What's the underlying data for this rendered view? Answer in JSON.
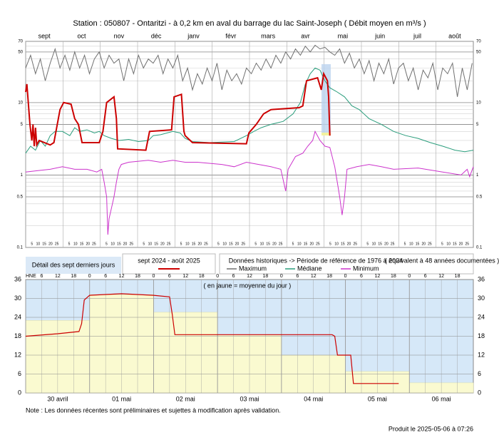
{
  "chart_data": [
    {
      "type": "line",
      "title": "Station : 050807      -   Ontaritzi - à 0,2 km en aval du barrage du lac Saint-Joseph   ( Débit moyen en m³/s )",
      "categories": [
        "sept",
        "oct",
        "nov",
        "déc",
        "janv",
        "févr",
        "mars",
        "avr",
        "mai",
        "juin",
        "juil",
        "août"
      ],
      "day_labels": [
        "5",
        "10",
        "15",
        "20",
        "25"
      ],
      "log_scale": true,
      "xlim": [
        0,
        365
      ],
      "ylim": [
        0.1,
        70
      ],
      "yticks": [
        0.1,
        0.5,
        1,
        5,
        10,
        50,
        70
      ],
      "series": [
        {
          "name": "Maximum",
          "color": "#707070",
          "x": [
            0,
            4,
            8,
            12,
            16,
            20,
            24,
            28,
            32,
            36,
            40,
            44,
            48,
            52,
            56,
            60,
            64,
            68,
            72,
            76,
            80,
            84,
            88,
            92,
            96,
            100,
            104,
            108,
            112,
            116,
            120,
            124,
            128,
            132,
            136,
            140,
            144,
            148,
            152,
            156,
            160,
            164,
            168,
            172,
            176,
            180,
            184,
            188,
            192,
            196,
            200,
            204,
            208,
            212,
            216,
            220,
            224,
            228,
            232,
            236,
            240,
            244,
            248,
            252,
            256,
            260,
            264,
            268,
            272,
            276,
            280,
            284,
            288,
            292,
            296,
            300,
            304,
            308,
            312,
            316,
            320,
            324,
            328,
            332,
            336,
            340,
            344,
            348,
            352,
            356,
            360,
            364
          ],
          "values": [
            30,
            45,
            25,
            40,
            20,
            35,
            55,
            30,
            45,
            28,
            50,
            30,
            45,
            25,
            40,
            50,
            30,
            45,
            35,
            40,
            20,
            40,
            25,
            45,
            30,
            40,
            35,
            45,
            25,
            40,
            30,
            45,
            20,
            30,
            15,
            25,
            18,
            30,
            20,
            35,
            15,
            28,
            20,
            25,
            18,
            30,
            25,
            35,
            28,
            40,
            30,
            45,
            35,
            50,
            40,
            55,
            45,
            60,
            50,
            62,
            55,
            58,
            50,
            45,
            55,
            35,
            48,
            30,
            40,
            25,
            38,
            20,
            35,
            25,
            40,
            18,
            30,
            35,
            20,
            30,
            15,
            28,
            22,
            35,
            15,
            30,
            25,
            35,
            12,
            30,
            15,
            35
          ]
        },
        {
          "name": "Médiane",
          "color": "#2a9d7c",
          "x": [
            0,
            4,
            8,
            12,
            16,
            20,
            24,
            30,
            36,
            40,
            44,
            50,
            56,
            60,
            64,
            70,
            76,
            84,
            92,
            100,
            104,
            110,
            120,
            126,
            130,
            136,
            150,
            170,
            180,
            186,
            192,
            200,
            210,
            218,
            224,
            228,
            232,
            236,
            240,
            244,
            248,
            254,
            260,
            266,
            272,
            280,
            290,
            300,
            310,
            320,
            330,
            340,
            350,
            358,
            365
          ],
          "values": [
            2,
            2.5,
            2.2,
            3,
            2.5,
            3.5,
            4,
            4,
            3.5,
            4.5,
            4,
            4.2,
            3.8,
            4,
            3.5,
            3.2,
            3,
            3.1,
            2.9,
            3,
            3.5,
            3.6,
            4,
            3.8,
            3.2,
            2.9,
            2.8,
            2.9,
            3.5,
            4,
            4.5,
            5,
            5.5,
            7,
            10,
            18,
            25,
            30,
            28,
            20,
            16,
            14,
            12,
            9,
            8,
            6,
            5,
            4,
            3.5,
            3.2,
            2.8,
            2.5,
            2.2,
            2.1,
            2.2
          ]
        },
        {
          "name": "Minimum",
          "color": "#cc33cc",
          "x": [
            0,
            10,
            20,
            30,
            40,
            50,
            58,
            62,
            64,
            66,
            67,
            68,
            70,
            72,
            74,
            76,
            78,
            84,
            100,
            110,
            120,
            130,
            140,
            160,
            170,
            180,
            190,
            200,
            208,
            212,
            214,
            220,
            226,
            230,
            234,
            236,
            240,
            244,
            248,
            252,
            256,
            258,
            260,
            262,
            270,
            280,
            290,
            300,
            320,
            340,
            355,
            360,
            362,
            365
          ],
          "values": [
            1.1,
            1.15,
            1.2,
            1.3,
            1.2,
            1.2,
            1.1,
            1.2,
            0.8,
            0.5,
            0.15,
            0.25,
            0.35,
            0.5,
            0.8,
            1.2,
            1.4,
            1.5,
            1.6,
            1.5,
            1.6,
            1.5,
            1.5,
            1.4,
            1.3,
            1.5,
            1.4,
            1.3,
            1.2,
            0.6,
            1.2,
            1.8,
            2,
            2.5,
            3,
            4,
            3,
            2.5,
            2.4,
            1.3,
            0.5,
            0.28,
            0.5,
            1.2,
            1.3,
            1.4,
            1.3,
            1.2,
            1.25,
            1.1,
            1.0,
            1.2,
            0.95,
            1.3
          ]
        },
        {
          "name": "sept 2024 - août 2025",
          "color": "#cc0000",
          "x": [
            0,
            1,
            3.5,
            5,
            6,
            7,
            8,
            9,
            11,
            20,
            23,
            28,
            31,
            37,
            40,
            43,
            46,
            60,
            63,
            66,
            72,
            74,
            75,
            98,
            101,
            119,
            121,
            127,
            129,
            130,
            136,
            180,
            182,
            188,
            194,
            200,
            223,
            226,
            229,
            238,
            241,
            243,
            246,
            247,
            248
          ],
          "values": [
            14,
            18,
            5,
            3,
            5,
            2.5,
            4.5,
            2.6,
            3,
            2.6,
            2.8,
            8,
            10,
            9.5,
            6,
            5,
            2.8,
            2.8,
            4,
            10,
            12,
            6,
            2.3,
            2.2,
            4,
            4.2,
            12,
            13,
            4,
            3.5,
            2.8,
            2.7,
            3.8,
            5,
            7,
            8,
            8.5,
            9,
            20,
            22,
            15,
            25,
            20,
            12,
            3.5
          ]
        }
      ]
    },
    {
      "type": "line",
      "annotation": "( en jaune = moyenne du jour )",
      "categories": [
        "30 avril",
        "01 mai",
        "02 mai",
        "03 mai",
        "04 mai",
        "05 mai",
        "06 mai"
      ],
      "xlim": [
        0,
        168
      ],
      "ylim": [
        0,
        36
      ],
      "yticks": [
        0,
        6,
        12,
        18,
        24,
        30,
        36
      ],
      "hour_ticks": [
        {
          "value": 0,
          "label": "HNE"
        },
        6,
        12,
        18,
        {
          "value": 24,
          "label": "0"
        },
        {
          "value": 30,
          "label": "6"
        },
        {
          "value": 36,
          "label": "12"
        },
        {
          "value": 42,
          "label": "18"
        },
        {
          "value": 48,
          "label": "0"
        },
        {
          "value": 54,
          "label": "6"
        },
        {
          "value": 60,
          "label": "12"
        },
        {
          "value": 66,
          "label": "18"
        },
        {
          "value": 72,
          "label": "0"
        },
        {
          "value": 78,
          "label": "6"
        },
        {
          "value": 84,
          "label": "12"
        },
        {
          "value": 90,
          "label": "18"
        },
        {
          "value": 96,
          "label": "0"
        },
        {
          "value": 102,
          "label": "6"
        },
        {
          "value": 108,
          "label": "12"
        },
        {
          "value": 114,
          "label": "18"
        },
        {
          "value": 120,
          "label": "0"
        },
        {
          "value": 126,
          "label": "6"
        },
        {
          "value": 132,
          "label": "12"
        },
        {
          "value": 138,
          "label": "18"
        },
        {
          "value": 144,
          "label": "0"
        },
        {
          "value": 150,
          "label": "6"
        },
        {
          "value": 156,
          "label": "12"
        },
        {
          "value": 162,
          "label": "18"
        }
      ],
      "daily_means": {
        "color": "#fafad0",
        "values": [
          23,
          31.2,
          25.6,
          18.5,
          12,
          6.8,
          3.2
        ]
      },
      "series": [
        {
          "color": "#cc0000",
          "x": [
            0,
            12,
            20,
            21,
            22,
            24,
            36,
            48,
            54,
            55,
            56,
            72,
            96,
            115,
            116,
            117,
            122,
            123,
            140
          ],
          "values": [
            18,
            18.8,
            19.5,
            22,
            29.5,
            31,
            31.5,
            31,
            30.5,
            25,
            18.5,
            18.5,
            18.5,
            18.5,
            18,
            12,
            12,
            3,
            3
          ]
        }
      ]
    }
  ],
  "legend": {
    "recent": "Détail des sept derniers jours",
    "history": "Données historiques -> Période de référence  de 1976 à 2024",
    "years": "( équivalent à 48 années documentées )"
  },
  "note": "Note : Les données récentes sont préliminaires et sujettes à modification après validation.",
  "footer": "Produit le 2025-05-06 à 07:26"
}
